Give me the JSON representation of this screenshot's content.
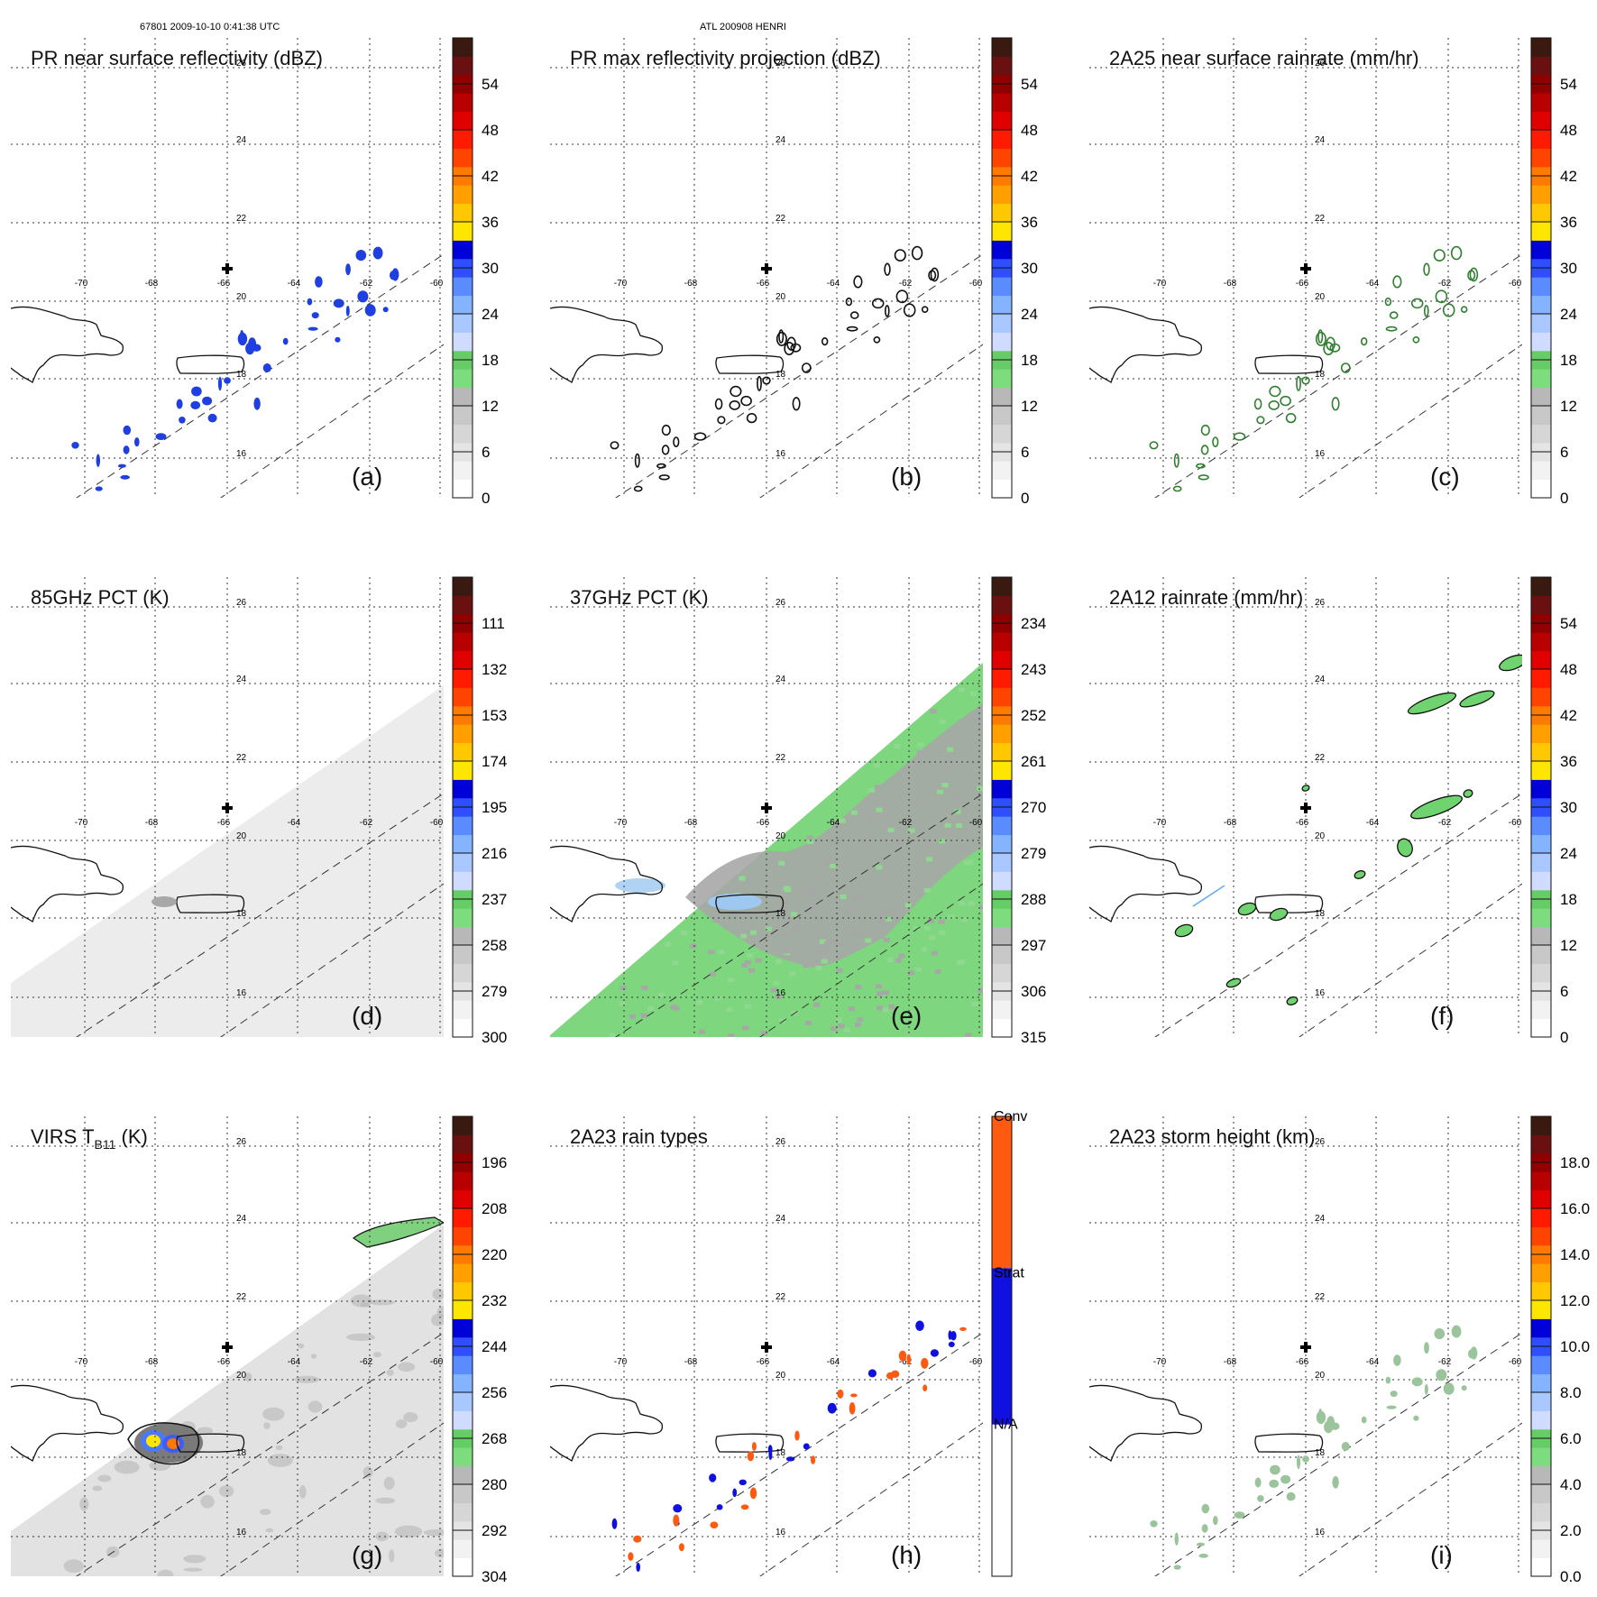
{
  "header": {
    "orbit_time": "67801 2009-10-10 0:41:38 UTC",
    "storm": "ATL 200908 HENRI"
  },
  "map": {
    "lon_labels": [
      "-70",
      "-68",
      "-66",
      "-64",
      "-62",
      "-60"
    ],
    "lat_labels": [
      "26",
      "24",
      "22",
      "20",
      "18",
      "16"
    ]
  },
  "chart_data": [
    {
      "id": "a",
      "type": "heatmap",
      "title": "PR near surface reflectivity (dBZ)",
      "panel_label": "(a)",
      "colorbar": {
        "ticks": [
          "0",
          "6",
          "12",
          "18",
          "24",
          "30",
          "36",
          "42",
          "48",
          "54"
        ],
        "unit": "dBZ"
      },
      "features": {
        "swath": "PR narrow swath",
        "echo_color": "#1f3fe0"
      }
    },
    {
      "id": "b",
      "type": "heatmap",
      "title": "PR max reflectivity projection (dBZ)",
      "panel_label": "(b)",
      "colorbar": {
        "ticks": [
          "0",
          "6",
          "12",
          "18",
          "24",
          "30",
          "36",
          "42",
          "48",
          "54"
        ],
        "unit": "dBZ"
      },
      "features": {
        "swath": "PR narrow swath",
        "echo_color": "#111111"
      }
    },
    {
      "id": "c",
      "type": "heatmap",
      "title": "2A25 near surface rainrate (mm/hr)",
      "panel_label": "(c)",
      "colorbar": {
        "ticks": [
          "0",
          "6",
          "12",
          "18",
          "24",
          "30",
          "36",
          "42",
          "48",
          "54"
        ],
        "unit": "mm/hr"
      },
      "features": {
        "swath": "PR narrow swath",
        "echo_color": "#2f7f2f"
      }
    },
    {
      "id": "d",
      "type": "heatmap",
      "title": "85GHz PCT (K)",
      "panel_label": "(d)",
      "colorbar": {
        "ticks": [
          "300",
          "279",
          "258",
          "237",
          "216",
          "195",
          "174",
          "153",
          "132",
          "111"
        ],
        "unit": "K"
      },
      "features": {
        "swath": "TMI wide swath",
        "fill": "#ececec"
      }
    },
    {
      "id": "e",
      "type": "heatmap",
      "title": "37GHz PCT (K)",
      "panel_label": "(e)",
      "colorbar": {
        "ticks": [
          "315",
          "306",
          "297",
          "288",
          "279",
          "270",
          "261",
          "252",
          "243",
          "234"
        ],
        "unit": "K"
      },
      "features": {
        "swath": "TMI wide swath",
        "fill": "#7ed67e",
        "warm_region": "#a7a7a7"
      }
    },
    {
      "id": "f",
      "type": "heatmap",
      "title": "2A12 rainrate (mm/hr)",
      "panel_label": "(f)",
      "colorbar": {
        "ticks": [
          "0",
          "6",
          "12",
          "18",
          "24",
          "30",
          "36",
          "42",
          "48",
          "54"
        ],
        "unit": "mm/hr"
      },
      "features": {
        "swath": "TMI wide swath",
        "echo_color": "#6fd46f"
      }
    },
    {
      "id": "g",
      "type": "heatmap",
      "title_main": "VIRS T",
      "title_sub": "B11",
      "title_unit": " (K)",
      "panel_label": "(g)",
      "colorbar": {
        "ticks": [
          "304",
          "292",
          "280",
          "268",
          "256",
          "244",
          "232",
          "220",
          "208",
          "196"
        ],
        "unit": "K"
      },
      "features": {
        "swath": "VIRS wide swath",
        "fill": "#e2e2e2"
      }
    },
    {
      "id": "h",
      "type": "heatmap",
      "title": "2A23 rain types",
      "panel_label": "(h)",
      "colorbar": {
        "categories": [
          "N/A",
          "Strat",
          "Conv"
        ],
        "colors": [
          "#ffffff",
          "#1010e0",
          "#ff5a10"
        ]
      },
      "features": {
        "swath": "PR narrow swath"
      }
    },
    {
      "id": "i",
      "type": "heatmap",
      "title": "2A23 storm height (km)",
      "panel_label": "(i)",
      "colorbar": {
        "ticks": [
          "0.0",
          "2.0",
          "4.0",
          "6.0",
          "8.0",
          "10.0",
          "12.0",
          "14.0",
          "16.0",
          "18.0"
        ],
        "unit": "km"
      },
      "features": {
        "swath": "PR narrow swath",
        "echo_color": "#9cc49c"
      }
    }
  ],
  "colorbar_palettes": {
    "standard": [
      "#ffffff",
      "#f2f2f2",
      "#e4e4e4",
      "#d6d6d6",
      "#c8c8c8",
      "#b8b8b8",
      "#7ddc7d",
      "#66cc66",
      "#cfdcff",
      "#a9c8ff",
      "#84b4ff",
      "#5b8cff",
      "#2f4fff",
      "#0000d8",
      "#ffe600",
      "#ffc800",
      "#ffa000",
      "#ff7a00",
      "#ff4400",
      "#ff1a00",
      "#e00000",
      "#b80000",
      "#900000",
      "#6a1010",
      "#3a1a10"
    ],
    "rain_types": [
      "#ffffff",
      "#1010e0",
      "#ff5a10"
    ]
  }
}
